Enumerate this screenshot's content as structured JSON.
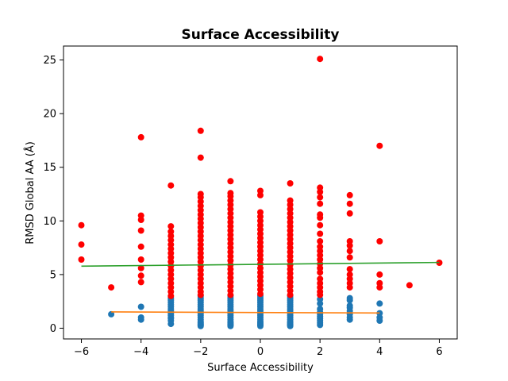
{
  "chart_data": {
    "type": "scatter",
    "title": "Surface Accessibility",
    "xlabel": "Surface Accessibility",
    "ylabel": "RMSD Global AA (Å)",
    "xlim": [
      -6.6,
      6.6
    ],
    "ylim": [
      -1.0,
      26.3
    ],
    "x_ticks": [
      -6,
      -4,
      -2,
      0,
      2,
      4,
      6
    ],
    "y_ticks": [
      0,
      5,
      10,
      15,
      20,
      25
    ],
    "grid": false,
    "colors": {
      "low_points": "#1f77b4",
      "high_points": "#ff0000",
      "low_fit": "#ff7f0e",
      "high_fit": "#2ca02c"
    },
    "series": [
      {
        "points": [
          [
            -5,
            1.3
          ],
          [
            -4,
            0.8
          ],
          [
            -4,
            1.0
          ],
          [
            -4,
            2.0
          ],
          [
            -3,
            0.4
          ],
          [
            -3,
            0.7
          ],
          [
            -3,
            0.9
          ],
          [
            -3,
            1.0
          ],
          [
            -3,
            1.2
          ],
          [
            -3,
            1.4
          ],
          [
            -3,
            1.6
          ],
          [
            -3,
            1.8
          ],
          [
            -3,
            2.0
          ],
          [
            -3,
            2.2
          ],
          [
            -3,
            2.4
          ],
          [
            -3,
            2.6
          ],
          [
            -3,
            2.8
          ],
          [
            -2,
            0.2
          ],
          [
            -2,
            0.3
          ],
          [
            -2,
            0.4
          ],
          [
            -2,
            0.5
          ],
          [
            -2,
            0.6
          ],
          [
            -2,
            0.8
          ],
          [
            -2,
            1.0
          ],
          [
            -2,
            1.2
          ],
          [
            -2,
            1.4
          ],
          [
            -2,
            1.6
          ],
          [
            -2,
            1.8
          ],
          [
            -2,
            2.0
          ],
          [
            -2,
            2.2
          ],
          [
            -2,
            2.4
          ],
          [
            -2,
            2.6
          ],
          [
            -2,
            2.8
          ],
          [
            -2,
            3.0
          ],
          [
            -1,
            0.2
          ],
          [
            -1,
            0.3
          ],
          [
            -1,
            0.4
          ],
          [
            -1,
            0.5
          ],
          [
            -1,
            0.6
          ],
          [
            -1,
            0.8
          ],
          [
            -1,
            1.0
          ],
          [
            -1,
            1.2
          ],
          [
            -1,
            1.4
          ],
          [
            -1,
            1.6
          ],
          [
            -1,
            1.8
          ],
          [
            -1,
            2.0
          ],
          [
            -1,
            2.2
          ],
          [
            -1,
            2.4
          ],
          [
            -1,
            2.6
          ],
          [
            -1,
            2.8
          ],
          [
            -1,
            3.0
          ],
          [
            0,
            0.2
          ],
          [
            0,
            0.3
          ],
          [
            0,
            0.4
          ],
          [
            0,
            0.5
          ],
          [
            0,
            0.6
          ],
          [
            0,
            0.8
          ],
          [
            0,
            1.0
          ],
          [
            0,
            1.2
          ],
          [
            0,
            1.4
          ],
          [
            0,
            1.6
          ],
          [
            0,
            1.8
          ],
          [
            0,
            2.0
          ],
          [
            0,
            2.2
          ],
          [
            0,
            2.4
          ],
          [
            0,
            2.6
          ],
          [
            0,
            2.8
          ],
          [
            0,
            3.0
          ],
          [
            1,
            0.2
          ],
          [
            1,
            0.3
          ],
          [
            1,
            0.4
          ],
          [
            1,
            0.5
          ],
          [
            1,
            0.6
          ],
          [
            1,
            0.8
          ],
          [
            1,
            1.0
          ],
          [
            1,
            1.2
          ],
          [
            1,
            1.4
          ],
          [
            1,
            1.6
          ],
          [
            1,
            1.8
          ],
          [
            1,
            2.0
          ],
          [
            1,
            2.2
          ],
          [
            1,
            2.4
          ],
          [
            1,
            2.6
          ],
          [
            1,
            2.8
          ],
          [
            1,
            3.0
          ],
          [
            2,
            0.3
          ],
          [
            2,
            0.5
          ],
          [
            2,
            0.7
          ],
          [
            2,
            0.9
          ],
          [
            2,
            1.1
          ],
          [
            2,
            1.3
          ],
          [
            2,
            1.5
          ],
          [
            2,
            1.8
          ],
          [
            2,
            2.3
          ],
          [
            2,
            2.7
          ],
          [
            3,
            0.8
          ],
          [
            3,
            1.0
          ],
          [
            3,
            1.3
          ],
          [
            3,
            1.6
          ],
          [
            3,
            1.9
          ],
          [
            3,
            2.1
          ],
          [
            3,
            2.6
          ],
          [
            3,
            2.8
          ],
          [
            4,
            0.7
          ],
          [
            4,
            1.0
          ],
          [
            4,
            1.4
          ],
          [
            4,
            2.3
          ]
        ]
      },
      {
        "points": [
          [
            -6,
            9.6
          ],
          [
            -6,
            7.8
          ],
          [
            -6,
            6.4
          ],
          [
            -5,
            3.8
          ],
          [
            -4,
            17.8
          ],
          [
            -4,
            10.5
          ],
          [
            -4,
            10.1
          ],
          [
            -4,
            9.1
          ],
          [
            -4,
            7.6
          ],
          [
            -4,
            6.4
          ],
          [
            -4,
            5.6
          ],
          [
            -4,
            4.9
          ],
          [
            -4,
            4.3
          ],
          [
            -3,
            13.3
          ],
          [
            -3,
            9.5
          ],
          [
            -3,
            9.0
          ],
          [
            -3,
            8.6
          ],
          [
            -3,
            8.2
          ],
          [
            -3,
            7.8
          ],
          [
            -3,
            7.4
          ],
          [
            -3,
            7.0
          ],
          [
            -3,
            6.6
          ],
          [
            -3,
            6.2
          ],
          [
            -3,
            5.8
          ],
          [
            -3,
            5.4
          ],
          [
            -3,
            5.0
          ],
          [
            -3,
            4.6
          ],
          [
            -3,
            4.2
          ],
          [
            -3,
            3.8
          ],
          [
            -3,
            3.4
          ],
          [
            -3,
            3.0
          ],
          [
            -2,
            18.4
          ],
          [
            -2,
            15.9
          ],
          [
            -2,
            12.5
          ],
          [
            -2,
            12.2
          ],
          [
            -2,
            11.8
          ],
          [
            -2,
            11.4
          ],
          [
            -2,
            11.0
          ],
          [
            -2,
            10.6
          ],
          [
            -2,
            10.2
          ],
          [
            -2,
            9.8
          ],
          [
            -2,
            9.4
          ],
          [
            -2,
            9.0
          ],
          [
            -2,
            8.6
          ],
          [
            -2,
            8.2
          ],
          [
            -2,
            7.8
          ],
          [
            -2,
            7.4
          ],
          [
            -2,
            7.0
          ],
          [
            -2,
            6.6
          ],
          [
            -2,
            6.2
          ],
          [
            -2,
            5.8
          ],
          [
            -2,
            5.4
          ],
          [
            -2,
            5.0
          ],
          [
            -2,
            4.6
          ],
          [
            -2,
            4.2
          ],
          [
            -2,
            3.8
          ],
          [
            -2,
            3.4
          ],
          [
            -2,
            3.1
          ],
          [
            -1,
            13.7
          ],
          [
            -1,
            12.6
          ],
          [
            -1,
            12.3
          ],
          [
            -1,
            11.9
          ],
          [
            -1,
            11.5
          ],
          [
            -1,
            11.1
          ],
          [
            -1,
            10.7
          ],
          [
            -1,
            10.3
          ],
          [
            -1,
            9.9
          ],
          [
            -1,
            9.5
          ],
          [
            -1,
            9.1
          ],
          [
            -1,
            8.7
          ],
          [
            -1,
            8.3
          ],
          [
            -1,
            7.9
          ],
          [
            -1,
            7.5
          ],
          [
            -1,
            7.1
          ],
          [
            -1,
            6.7
          ],
          [
            -1,
            6.3
          ],
          [
            -1,
            5.9
          ],
          [
            -1,
            5.5
          ],
          [
            -1,
            5.1
          ],
          [
            -1,
            4.7
          ],
          [
            -1,
            4.3
          ],
          [
            -1,
            3.9
          ],
          [
            -1,
            3.5
          ],
          [
            -1,
            3.1
          ],
          [
            0,
            12.8
          ],
          [
            0,
            12.4
          ],
          [
            0,
            10.8
          ],
          [
            0,
            10.4
          ],
          [
            0,
            10.0
          ],
          [
            0,
            9.6
          ],
          [
            0,
            9.2
          ],
          [
            0,
            8.8
          ],
          [
            0,
            8.4
          ],
          [
            0,
            8.0
          ],
          [
            0,
            7.6
          ],
          [
            0,
            7.2
          ],
          [
            0,
            6.8
          ],
          [
            0,
            6.4
          ],
          [
            0,
            6.0
          ],
          [
            0,
            5.6
          ],
          [
            0,
            5.2
          ],
          [
            0,
            4.8
          ],
          [
            0,
            4.4
          ],
          [
            0,
            4.0
          ],
          [
            0,
            3.6
          ],
          [
            0,
            3.2
          ],
          [
            1,
            13.5
          ],
          [
            1,
            11.9
          ],
          [
            1,
            11.5
          ],
          [
            1,
            11.1
          ],
          [
            1,
            10.7
          ],
          [
            1,
            10.3
          ],
          [
            1,
            9.9
          ],
          [
            1,
            9.5
          ],
          [
            1,
            9.1
          ],
          [
            1,
            8.7
          ],
          [
            1,
            8.3
          ],
          [
            1,
            7.9
          ],
          [
            1,
            7.5
          ],
          [
            1,
            7.1
          ],
          [
            1,
            6.7
          ],
          [
            1,
            6.3
          ],
          [
            1,
            5.9
          ],
          [
            1,
            5.5
          ],
          [
            1,
            5.1
          ],
          [
            1,
            4.7
          ],
          [
            1,
            4.3
          ],
          [
            1,
            3.9
          ],
          [
            1,
            3.5
          ],
          [
            1,
            3.1
          ],
          [
            2,
            25.1
          ],
          [
            2,
            13.1
          ],
          [
            2,
            12.7
          ],
          [
            2,
            12.2
          ],
          [
            2,
            11.6
          ],
          [
            2,
            10.6
          ],
          [
            2,
            10.3
          ],
          [
            2,
            9.6
          ],
          [
            2,
            8.8
          ],
          [
            2,
            8.1
          ],
          [
            2,
            7.6
          ],
          [
            2,
            7.2
          ],
          [
            2,
            6.8
          ],
          [
            2,
            6.4
          ],
          [
            2,
            6.0
          ],
          [
            2,
            5.6
          ],
          [
            2,
            5.2
          ],
          [
            2,
            4.6
          ],
          [
            2,
            4.2
          ],
          [
            2,
            3.8
          ],
          [
            2,
            3.4
          ],
          [
            2,
            3.1
          ],
          [
            3,
            12.4
          ],
          [
            3,
            11.6
          ],
          [
            3,
            10.7
          ],
          [
            3,
            8.1
          ],
          [
            3,
            7.7
          ],
          [
            3,
            7.2
          ],
          [
            3,
            6.6
          ],
          [
            3,
            5.5
          ],
          [
            3,
            5.0
          ],
          [
            3,
            4.6
          ],
          [
            3,
            4.2
          ],
          [
            3,
            3.8
          ],
          [
            4,
            17.0
          ],
          [
            4,
            8.1
          ],
          [
            4,
            5.0
          ],
          [
            4,
            4.2
          ],
          [
            4,
            3.8
          ],
          [
            5,
            4.0
          ],
          [
            6,
            6.1
          ]
        ]
      }
    ],
    "fit_lines": [
      {
        "x": [
          -5,
          4
        ],
        "y": [
          1.52,
          1.42
        ]
      },
      {
        "x": [
          -6,
          6
        ],
        "y": [
          5.78,
          6.13
        ]
      }
    ]
  }
}
